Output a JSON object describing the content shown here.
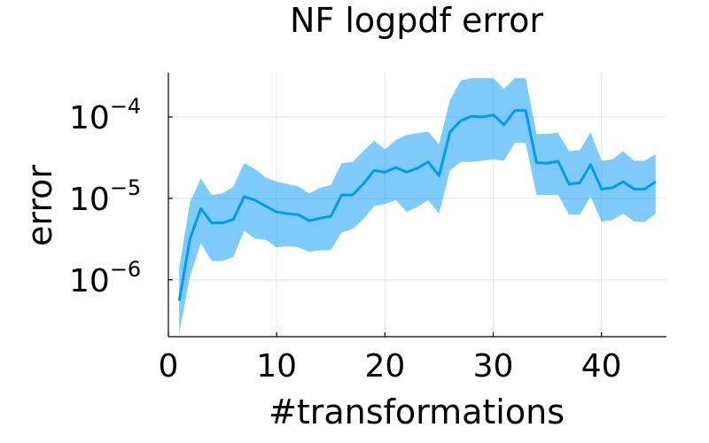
{
  "chart_data": {
    "type": "line",
    "title": "NF logpdf error",
    "xlabel": "#transformations",
    "ylabel": "error",
    "x_ticks": [
      0,
      10,
      20,
      30,
      40
    ],
    "y_ticks": [
      {
        "base": "10",
        "exp": "−6",
        "value": 1e-06
      },
      {
        "base": "10",
        "exp": "−5",
        "value": 1e-05
      },
      {
        "base": "10",
        "exp": "−4",
        "value": 0.0001
      }
    ],
    "xlim": [
      0,
      46
    ],
    "ylim": [
      2e-07,
      0.00035
    ],
    "yscale": "log",
    "grid": true,
    "legend": "none",
    "colors": {
      "line": "#009AF9",
      "band": "#009AF9"
    },
    "series": [
      {
        "x": [
          1,
          2,
          3,
          4,
          5,
          6,
          7,
          8,
          9,
          10,
          11,
          12,
          13,
          14,
          15,
          16,
          17,
          18,
          19,
          20,
          21,
          22,
          23,
          24,
          25,
          26,
          27,
          28,
          29,
          30,
          31,
          32,
          33,
          34,
          35,
          36,
          37,
          38,
          39,
          40,
          41,
          42,
          43,
          44,
          45
        ],
        "y": [
          5.5e-07,
          3.2e-06,
          7.5e-06,
          5e-06,
          5e-06,
          5.5e-06,
          1.05e-05,
          9.5e-06,
          8e-06,
          6.8e-06,
          6.5e-06,
          6.3e-06,
          5.3e-06,
          5.7e-06,
          6e-06,
          1.1e-05,
          1.1e-05,
          1.5e-05,
          2.2e-05,
          2.1e-05,
          2.4e-05,
          2.1e-05,
          2.35e-05,
          2.8e-05,
          1.9e-05,
          6.5e-05,
          9e-05,
          0.000102,
          0.0001,
          0.000106,
          8e-05,
          0.00012,
          0.00012,
          2.75e-05,
          2.7e-05,
          2.85e-05,
          1.5e-05,
          1.55e-05,
          2.6e-05,
          1.3e-05,
          1.35e-05,
          1.6e-05,
          1.3e-05,
          1.3e-05,
          1.6e-05
        ],
        "lower": [
          2.2e-07,
          1.1e-06,
          2.8e-06,
          1.7e-06,
          1.7e-06,
          1.9e-06,
          4e-06,
          3.2e-06,
          3.1e-06,
          2.5e-06,
          2.6e-06,
          2.5e-06,
          2.2e-06,
          2.3e-06,
          2.3e-06,
          3.8e-06,
          4.2e-06,
          5.5e-06,
          8e-06,
          8.5e-06,
          9.5e-06,
          6.8e-06,
          7.8e-06,
          9.5e-06,
          6.5e-06,
          2.2e-05,
          2.8e-05,
          2.8e-05,
          2.9e-05,
          3e-05,
          2.9e-05,
          4.8e-05,
          4.8e-05,
          1.1e-05,
          1.1e-05,
          1.1e-05,
          6.3e-06,
          6.3e-06,
          1.05e-05,
          5.2e-06,
          5.4e-06,
          6.5e-06,
          5.2e-06,
          5.1e-06,
          6.5e-06
        ],
        "upper": [
          1.4e-06,
          9e-06,
          1.75e-05,
          1.1e-05,
          1.15e-05,
          1.4e-05,
          2.7e-05,
          2.3e-05,
          1.8e-05,
          1.6e-05,
          1.5e-05,
          1.4e-05,
          1.15e-05,
          1.35e-05,
          1.45e-05,
          2.7e-05,
          2.8e-05,
          3.8e-05,
          5.1e-05,
          4e-05,
          5.2e-05,
          6e-05,
          6.3e-05,
          6.6e-05,
          4.6e-05,
          0.00016,
          0.00028,
          0.0003,
          0.0003,
          0.0003,
          0.00022,
          0.0003,
          0.0003,
          6.2e-05,
          6.2e-05,
          6.4e-05,
          3.8e-05,
          3.9e-05,
          6.5e-05,
          2.9e-05,
          3e-05,
          3.8e-05,
          2.9e-05,
          2.9e-05,
          3.5e-05
        ]
      }
    ]
  }
}
